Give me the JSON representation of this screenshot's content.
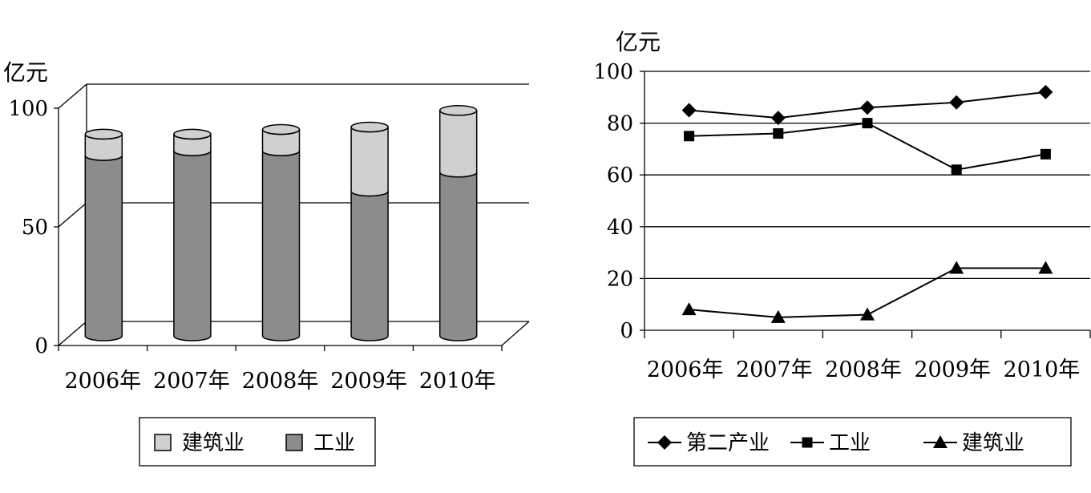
{
  "chart_data": [
    {
      "type": "bar",
      "stacked": true,
      "three_d": true,
      "unit_label": "亿元",
      "categories": [
        "2006年",
        "2007年",
        "2008年",
        "2009年",
        "2010年"
      ],
      "series": [
        {
          "name": "工业",
          "values": [
            76,
            78,
            78,
            61,
            69
          ],
          "color": "#8c8c8c"
        },
        {
          "name": "建筑业",
          "values": [
            9,
            7,
            9,
            27,
            26
          ],
          "color": "#d0d0d0"
        }
      ],
      "ylim": [
        0,
        100
      ],
      "yticks": [
        "0",
        "50",
        "100"
      ],
      "grid": true,
      "legend": [
        {
          "label": "建筑业",
          "color": "#d0d0d0"
        },
        {
          "label": "工业",
          "color": "#8c8c8c"
        }
      ],
      "legend_position": "bottom"
    },
    {
      "type": "line",
      "unit_label": "亿元",
      "categories": [
        "2006年",
        "2007年",
        "2008年",
        "2009年",
        "2010年"
      ],
      "series": [
        {
          "name": "第二产业",
          "marker": "diamond",
          "values": [
            85,
            82,
            86,
            88,
            92
          ]
        },
        {
          "name": "工业",
          "marker": "square",
          "values": [
            75,
            76,
            80,
            62,
            68
          ]
        },
        {
          "name": "建筑业",
          "marker": "triangle",
          "values": [
            8,
            5,
            6,
            24,
            24
          ]
        }
      ],
      "ylim": [
        0,
        100
      ],
      "yticks": [
        "0",
        "20",
        "40",
        "60",
        "80",
        "100"
      ],
      "grid": true,
      "legend": [
        {
          "label": "第二产业",
          "marker": "diamond"
        },
        {
          "label": "工业",
          "marker": "square"
        },
        {
          "label": "建筑业",
          "marker": "triangle"
        }
      ],
      "legend_position": "bottom"
    }
  ]
}
